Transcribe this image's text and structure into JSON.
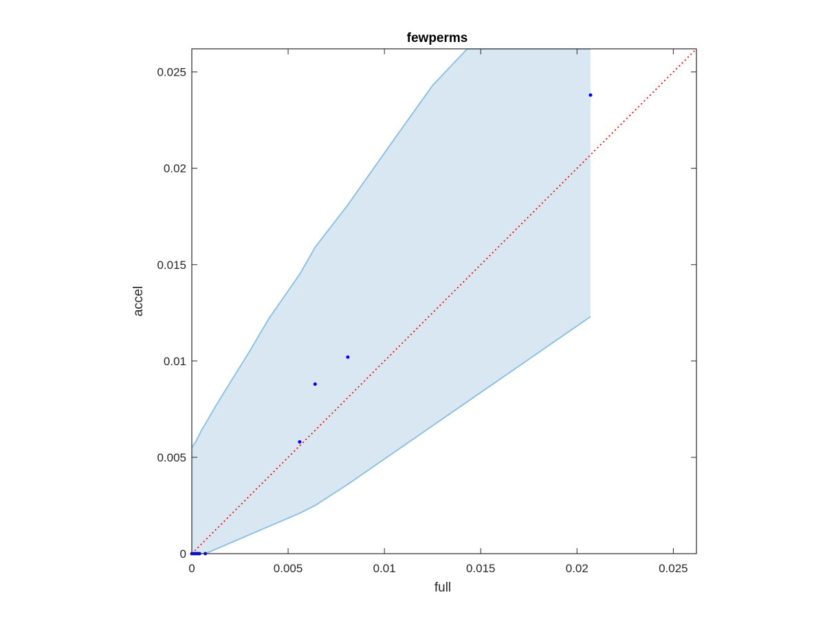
{
  "chart_data": {
    "type": "scatter",
    "title": "fewperms",
    "xlabel": "full",
    "ylabel": "accel",
    "xlim": [
      0,
      0.0262
    ],
    "ylim": [
      0,
      0.0262
    ],
    "xticks": [
      0,
      0.005,
      0.01,
      0.015,
      0.02,
      0.025
    ],
    "xtick_labels": [
      "0",
      "0.005",
      "0.01",
      "0.015",
      "0.02",
      "0.025"
    ],
    "yticks": [
      0,
      0.005,
      0.01,
      0.015,
      0.02,
      0.025
    ],
    "ytick_labels": [
      "0",
      "0.005",
      "0.01",
      "0.015",
      "0.02",
      "0.025"
    ],
    "grid": false,
    "series": [
      {
        "type": "scatter",
        "color": "#0000ff",
        "x": [
          0,
          0.0001,
          0.0002,
          0.0003,
          0.0004,
          0.0007,
          0.0056,
          0.0064,
          0.0081,
          0.0207
        ],
        "y": [
          0,
          0,
          0,
          0,
          0,
          0,
          0.0058,
          0.0088,
          0.0102,
          0.0238
        ]
      },
      {
        "type": "line",
        "style": "dotted",
        "color": "#ff0000",
        "x": [
          0,
          0.0262
        ],
        "y": [
          0,
          0.0262
        ]
      }
    ],
    "band": {
      "fill": "#d9e7f3",
      "stroke": "#86bde3",
      "x": [
        0,
        0.0007,
        0.0056,
        0.0064,
        0.0081,
        0.0207
      ],
      "upper": [
        0.0055,
        0.0069,
        0.0145,
        0.0159,
        0.0181,
        0.0262
      ],
      "lower": [
        0,
        0,
        0.0021,
        0.0025,
        0.0036,
        0.0123
      ],
      "upper_curve_x": [
        0,
        0.0002,
        0.0005,
        0.0008,
        0.0012,
        0.002,
        0.003,
        0.004,
        0.0056,
        0.0064,
        0.0081,
        0.0105,
        0.0125,
        0.0143,
        0.0207
      ],
      "upper_curve_y": [
        0.0055,
        0.0058,
        0.0064,
        0.0069,
        0.0076,
        0.0089,
        0.0105,
        0.0122,
        0.0145,
        0.0159,
        0.0181,
        0.0215,
        0.0243,
        0.0262,
        0.0262
      ]
    }
  }
}
